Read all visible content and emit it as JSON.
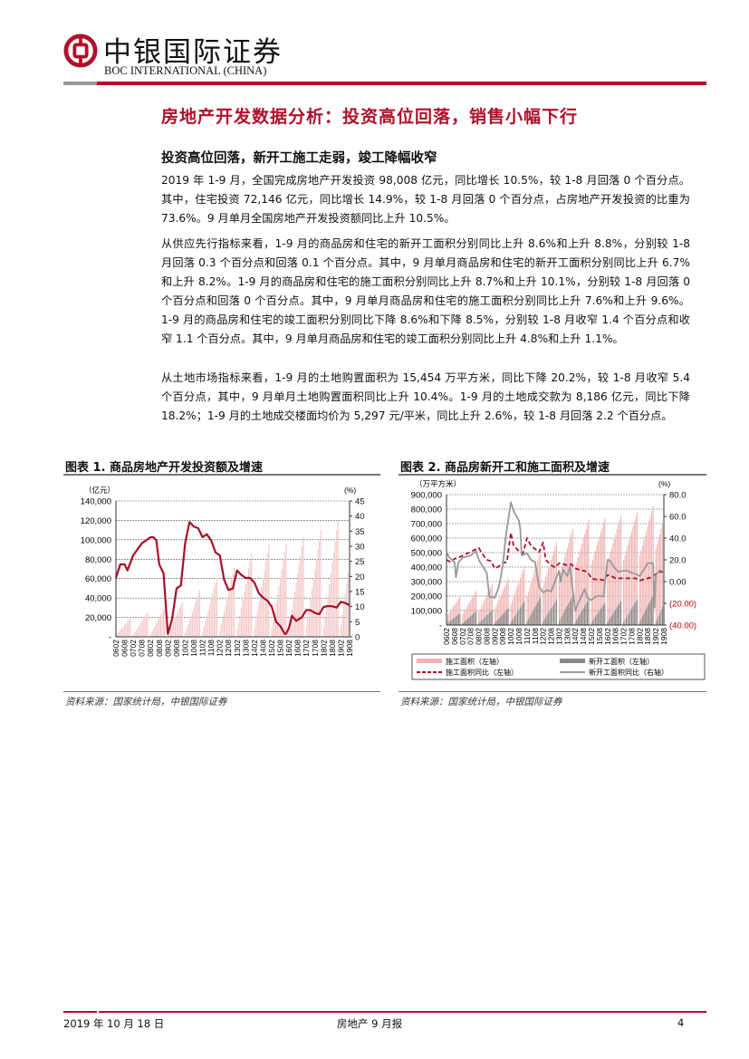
{
  "header": {
    "brand_cn": "中银国际证券",
    "brand_en": "BOC INTERNATIONAL (CHINA)",
    "brand_color": "#b0102a"
  },
  "report_title": "房地产开发数据分析：投资高位回落，销售小幅下行",
  "section_heading": "投资高位回落，新开工施工走弱，竣工降幅收窄",
  "paragraphs": [
    "2019 年 1-9 月，全国完成房地产开发投资 98,008 亿元，同比增长 10.5%，较 1-8 月回落 0 个百分点。其中，住宅投资 72,146 亿元，同比增长 14.9%，较 1-8 月回落 0 个百分点，占房地产开发投资的比重为 73.6%。9 月单月全国房地产开发投资额同比上升 10.5%。",
    "从供应先行指标来看，1-9 月的商品房和住宅的新开工面积分别同比上升 8.6%和上升 8.8%，分别较 1-8 月回落 0.3 个百分点和回落 0.1 个百分点。其中，9 月单月商品房和住宅的新开工面积分别同比上升 6.7%和上升 8.2%。1-9 月的商品房和住宅的施工面积分别同比上升 8.7%和上升 10.1%，分别较 1-8 月回落 0 个百分点和回落 0 个百分点。其中，9 月单月商品房和住宅的施工面积分别同比上升 7.6%和上升 9.6%。1-9 月的商品房和住宅的竣工面积分别同比下降 8.6%和下降 8.5%，分别较 1-8 月收窄 1.4 个百分点和收窄 1.1 个百分点。其中，9 月单月商品房和住宅的竣工面积分别同比上升 4.8%和上升 1.1%。",
    "从土地市场指标来看，1-9 月的土地购置面积为 15,454 万平方米，同比下降 20.2%，较 1-8 月收窄 5.4 个百分点，其中，9 月单月土地购置面积同比上升 10.4%。1-9 月的土地成交款为 8,186 亿元，同比下降 18.2%；1-9 月的土地成交楼面均价为 5,297 元/平米，同比上升 2.6%，较 1-8 月回落 2.2 个百分点。"
  ],
  "chart_data": [
    {
      "type": "bar+line",
      "title": "图表 1. 商品房地产开发投资额及增速",
      "left_unit": "（亿元）",
      "right_unit": "(%)",
      "left_ticks": [
        "-",
        "20,000",
        "40,000",
        "60,000",
        "80,000",
        "100,000",
        "120,000",
        "140,000"
      ],
      "left_ylim": [
        0,
        140000
      ],
      "right_ticks": [
        "0",
        "5",
        "10",
        "15",
        "20",
        "25",
        "30",
        "35",
        "40",
        "45"
      ],
      "right_ylim": [
        0,
        45
      ],
      "x_ticks": [
        "0602",
        "0608",
        "0702",
        "0708",
        "0802",
        "0808",
        "0902",
        "0908",
        "1002",
        "1008",
        "1102",
        "1108",
        "1202",
        "1208",
        "1302",
        "1308",
        "1402",
        "1408",
        "1502",
        "1508",
        "1602",
        "1608",
        "1702",
        "1708",
        "1802",
        "1808",
        "1902",
        "1908"
      ],
      "grid": true,
      "bars": {
        "axis": "left",
        "color": "#f3c9c9",
        "yearly_feb_to_dec": [
          {
            "year": 2006,
            "feb": 2000,
            "dec": 19400
          },
          {
            "year": 2007,
            "feb": 2500,
            "dec": 25300
          },
          {
            "year": 2008,
            "feb": 3000,
            "dec": 30600
          },
          {
            "year": 2009,
            "feb": 3000,
            "dec": 36200
          },
          {
            "year": 2010,
            "feb": 4000,
            "dec": 48300
          },
          {
            "year": 2011,
            "feb": 5000,
            "dec": 61800
          },
          {
            "year": 2012,
            "feb": 6000,
            "dec": 71800
          },
          {
            "year": 2013,
            "feb": 7000,
            "dec": 86000
          },
          {
            "year": 2014,
            "feb": 8000,
            "dec": 95000
          },
          {
            "year": 2015,
            "feb": 8500,
            "dec": 95900
          },
          {
            "year": 2016,
            "feb": 9000,
            "dec": 102600
          },
          {
            "year": 2017,
            "feb": 9500,
            "dec": 109800
          },
          {
            "year": 2018,
            "feb": 10000,
            "dec": 120300
          },
          {
            "year": 2019,
            "feb": 12000,
            "dec": 120000,
            "last_month": 8
          }
        ]
      },
      "line": {
        "axis": "right",
        "color": "#a8102a",
        "points": [
          [
            "0602",
            19.5
          ],
          [
            "0605",
            24
          ],
          [
            "0608",
            24
          ],
          [
            "0610",
            22
          ],
          [
            "0702",
            27
          ],
          [
            "0708",
            31
          ],
          [
            "0802",
            33
          ],
          [
            "0804",
            33
          ],
          [
            "0806",
            32
          ],
          [
            "0808",
            24
          ],
          [
            "0811",
            21
          ],
          [
            "0902",
            1
          ],
          [
            "0905",
            6
          ],
          [
            "0908",
            16
          ],
          [
            "0911",
            17
          ],
          [
            "1002",
            31
          ],
          [
            "1005",
            38
          ],
          [
            "1008",
            36.5
          ],
          [
            "1011",
            36
          ],
          [
            "1102",
            33
          ],
          [
            "1105",
            34
          ],
          [
            "1108",
            32
          ],
          [
            "1111",
            28
          ],
          [
            "1202",
            27
          ],
          [
            "1205",
            19
          ],
          [
            "1208",
            15.5
          ],
          [
            "1211",
            16
          ],
          [
            "1302",
            22
          ],
          [
            "1305",
            20.5
          ],
          [
            "1308",
            19.5
          ],
          [
            "1311",
            19.5
          ],
          [
            "1402",
            18
          ],
          [
            "1405",
            14.5
          ],
          [
            "1408",
            13
          ],
          [
            "1411",
            12
          ],
          [
            "1502",
            10
          ],
          [
            "1505",
            5
          ],
          [
            "1508",
            3.5
          ],
          [
            "1511",
            1
          ],
          [
            "1512",
            1
          ],
          [
            "1602",
            3
          ],
          [
            "1604",
            7
          ],
          [
            "1607",
            5.3
          ],
          [
            "1611",
            6.5
          ],
          [
            "1702",
            8.9
          ],
          [
            "1705",
            8.8
          ],
          [
            "1708",
            7.9
          ],
          [
            "1711",
            7.5
          ],
          [
            "1802",
            9.9
          ],
          [
            "1805",
            10.2
          ],
          [
            "1808",
            10.1
          ],
          [
            "1811",
            9.7
          ],
          [
            "1902",
            11.6
          ],
          [
            "1905",
            11.2
          ],
          [
            "1908",
            10.5
          ]
        ]
      },
      "source": "资料来源：国家统计局，中银国际证券"
    },
    {
      "type": "bar+line",
      "title": "图表 2. 商品房新开工和施工面积及增速",
      "left_unit": "（万平方米）",
      "right_unit": "(%)",
      "left_ticks": [
        "-",
        "100,000",
        "200,000",
        "300,000",
        "400,000",
        "500,000",
        "600,000",
        "700,000",
        "800,000",
        "900,000"
      ],
      "left_ylim": [
        0,
        900000
      ],
      "right_ticks": [
        "(40.00)",
        "(20.00)",
        "0.00",
        "20.0",
        "40.0",
        "60.0",
        "80.0"
      ],
      "right_ylim": [
        -40,
        80
      ],
      "right_negative_color": "#c00000",
      "x_ticks": [
        "0602",
        "0608",
        "0702",
        "0708",
        "0802",
        "0808",
        "0902",
        "0908",
        "1002",
        "1008",
        "1102",
        "1108",
        "1202",
        "1208",
        "1302",
        "1308",
        "1402",
        "1408",
        "1502",
        "1508",
        "1602",
        "1608",
        "1702",
        "1708",
        "1802",
        "1808",
        "1902",
        "1908"
      ],
      "grid": true,
      "legend": [
        "施工面积（左轴）",
        "新开工面积（左轴）",
        "施工面积同比（左轴）",
        "新开工面积同比（右轴）"
      ],
      "series": [
        {
          "name": "施工面积（左轴）",
          "kind": "bar",
          "color": "#f0b4b4",
          "yearly_feb_to_dec": [
            {
              "year": 2006,
              "feb": 60000,
              "dec": 194000
            },
            {
              "year": 2007,
              "feb": 75000,
              "dec": 236000
            },
            {
              "year": 2008,
              "feb": 90000,
              "dec": 283000
            },
            {
              "year": 2009,
              "feb": 110000,
              "dec": 320000
            },
            {
              "year": 2010,
              "feb": 140000,
              "dec": 405000
            },
            {
              "year": 2011,
              "feb": 200000,
              "dec": 506000
            },
            {
              "year": 2012,
              "feb": 270000,
              "dec": 573000
            },
            {
              "year": 2013,
              "feb": 330000,
              "dec": 665000
            },
            {
              "year": 2014,
              "feb": 400000,
              "dec": 726000
            },
            {
              "year": 2015,
              "feb": 420000,
              "dec": 735000
            },
            {
              "year": 2016,
              "feb": 430000,
              "dec": 758000
            },
            {
              "year": 2017,
              "feb": 450000,
              "dec": 781000
            },
            {
              "year": 2018,
              "feb": 480000,
              "dec": 822000
            },
            {
              "year": 2019,
              "feb": 520000,
              "dec": 880000,
              "last_month": 8
            }
          ]
        },
        {
          "name": "新开工面积（左轴）",
          "kind": "bar",
          "color": "#888888",
          "yearly_feb_to_dec": [
            {
              "year": 2006,
              "feb": 10000,
              "dec": 80000
            },
            {
              "year": 2007,
              "feb": 12000,
              "dec": 95000
            },
            {
              "year": 2008,
              "feb": 14000,
              "dec": 103000
            },
            {
              "year": 2009,
              "feb": 14000,
              "dec": 116000
            },
            {
              "year": 2010,
              "feb": 20000,
              "dec": 164000
            },
            {
              "year": 2011,
              "feb": 25000,
              "dec": 191000
            },
            {
              "year": 2012,
              "feb": 25000,
              "dec": 177000
            },
            {
              "year": 2013,
              "feb": 28000,
              "dec": 201000
            },
            {
              "year": 2014,
              "feb": 20000,
              "dec": 180000
            },
            {
              "year": 2015,
              "feb": 17000,
              "dec": 154000
            },
            {
              "year": 2016,
              "feb": 20000,
              "dec": 167000
            },
            {
              "year": 2017,
              "feb": 20000,
              "dec": 178000
            },
            {
              "year": 2018,
              "feb": 20000,
              "dec": 209000
            },
            {
              "year": 2019,
              "feb": 19000,
              "dec": 230000,
              "last_month": 8
            }
          ]
        },
        {
          "name": "施工面积同比（左轴）",
          "kind": "line",
          "dashed": true,
          "axis": "right",
          "color": "#b0102a",
          "points": [
            [
              "0602",
              20
            ],
            [
              "0605",
              18
            ],
            [
              "0608",
              21
            ],
            [
              "0611",
              22
            ],
            [
              "0802",
              31
            ],
            [
              "0805",
              25
            ],
            [
              "0808",
              20
            ],
            [
              "0811",
              19
            ],
            [
              "0902",
              12
            ],
            [
              "0905",
              14
            ],
            [
              "0908",
              17
            ],
            [
              "0911",
              18
            ],
            [
              "1002",
              45
            ],
            [
              "1004",
              33
            ],
            [
              "1008",
              28
            ],
            [
              "1011",
              26
            ],
            [
              "1102",
              40
            ],
            [
              "1105",
              33
            ],
            [
              "1108",
              30
            ],
            [
              "1111",
              27
            ],
            [
              "1202",
              36
            ],
            [
              "1204",
              20
            ],
            [
              "1208",
              15
            ],
            [
              "1211",
              13
            ],
            [
              "1302",
              17
            ],
            [
              "1305",
              16
            ],
            [
              "1308",
              15
            ],
            [
              "1311",
              16
            ],
            [
              "1402",
              12
            ],
            [
              "1405",
              11
            ],
            [
              "1408",
              10
            ],
            [
              "1411",
              9
            ],
            [
              "1502",
              3
            ],
            [
              "1505",
              2
            ],
            [
              "1508",
              2
            ],
            [
              "1511",
              1.3
            ],
            [
              "1602",
              6
            ],
            [
              "1605",
              5
            ],
            [
              "1608",
              3
            ],
            [
              "1611",
              3
            ],
            [
              "1702",
              3
            ],
            [
              "1705",
              3
            ],
            [
              "1708",
              3
            ],
            [
              "1711",
              3
            ],
            [
              "1802",
              1
            ],
            [
              "1805",
              2
            ],
            [
              "1808",
              3
            ],
            [
              "1811",
              4
            ],
            [
              "1902",
              7
            ],
            [
              "1905",
              8.8
            ],
            [
              "1908",
              8.8
            ]
          ]
        },
        {
          "name": "新开工面积同比（右轴）",
          "kind": "line",
          "axis": "right",
          "color": "#999999",
          "points": [
            [
              "0602",
              28
            ],
            [
              "0604",
              22
            ],
            [
              "0606",
              20
            ],
            [
              "0608",
              18
            ],
            [
              "0609",
              4
            ],
            [
              "0611",
              18
            ],
            [
              "0702",
              22
            ],
            [
              "0708",
              24
            ],
            [
              "0712",
              28
            ],
            [
              "0802",
              20
            ],
            [
              "0805",
              14
            ],
            [
              "0808",
              8
            ],
            [
              "0810",
              -14
            ],
            [
              "0902",
              -15
            ],
            [
              "0905",
              -5
            ],
            [
              "0908",
              15
            ],
            [
              "0910",
              40
            ],
            [
              "1002",
              73
            ],
            [
              "1004",
              65
            ],
            [
              "1008",
              56
            ],
            [
              "1009",
              48
            ],
            [
              "1010",
              24
            ],
            [
              "1102",
              26
            ],
            [
              "1105",
              20
            ],
            [
              "1108",
              18
            ],
            [
              "1111",
              -5
            ],
            [
              "1202",
              -10
            ],
            [
              "1205",
              -8
            ],
            [
              "1208",
              -9
            ],
            [
              "1302",
              10
            ],
            [
              "1303",
              0
            ],
            [
              "1305",
              11
            ],
            [
              "1308",
              5
            ],
            [
              "1310",
              14
            ],
            [
              "1402",
              -27
            ],
            [
              "1404",
              -20
            ],
            [
              "1406",
              -15
            ],
            [
              "1409",
              -7
            ],
            [
              "1411",
              -15
            ],
            [
              "1502",
              -17
            ],
            [
              "1505",
              -14
            ],
            [
              "1508",
              -13
            ],
            [
              "1511",
              -14
            ],
            [
              "1602",
              20
            ],
            [
              "1604",
              19
            ],
            [
              "1607",
              13
            ],
            [
              "1610",
              9
            ],
            [
              "1702",
              10
            ],
            [
              "1705",
              10
            ],
            [
              "1708",
              8
            ],
            [
              "1711",
              7
            ],
            [
              "1802",
              5
            ],
            [
              "1805",
              11
            ],
            [
              "1808",
              17
            ],
            [
              "1810",
              17
            ],
            [
              "1812",
              17
            ],
            [
              "1901",
              -24
            ],
            [
              "1902",
              6
            ],
            [
              "1905",
              10.5
            ],
            [
              "1908",
              9
            ]
          ]
        }
      ],
      "source": "资料来源：国家统计局，中银国际证券"
    }
  ],
  "footer": {
    "date": "2019 年 10 月 18 日",
    "report_name": "房地产 9 月报",
    "page_number": "4"
  }
}
